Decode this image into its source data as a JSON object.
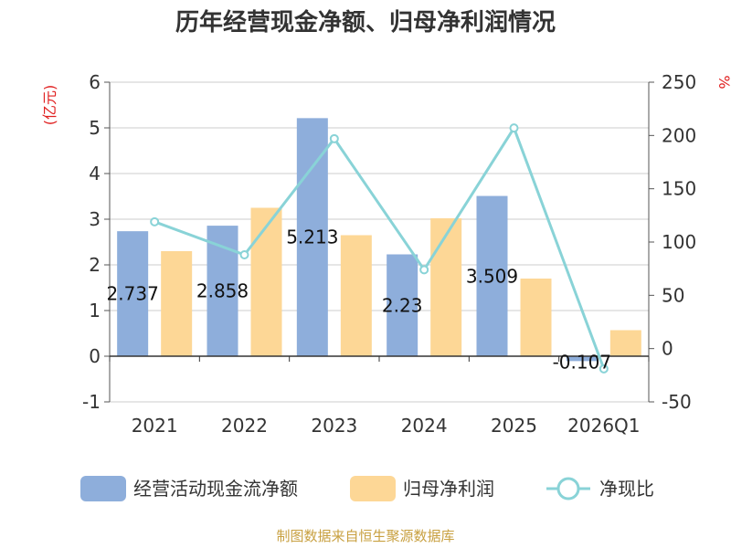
{
  "chart_data": {
    "type": "bar",
    "title": "历年经营现金净额、归母净利润情况",
    "left_unit": "(亿元)",
    "right_unit": "%",
    "categories": [
      "2021",
      "2022",
      "2023",
      "2024",
      "2025",
      "2026Q1"
    ],
    "ylim": [
      -1,
      6
    ],
    "yticks": [
      -1,
      0,
      1,
      2,
      3,
      4,
      5,
      6
    ],
    "y2lim": [
      -50,
      250
    ],
    "y2ticks": [
      -50,
      0,
      50,
      100,
      150,
      200,
      250
    ],
    "grid": true,
    "legend_position": "bottom",
    "series": [
      {
        "name": "经营活动现金流净额",
        "type": "bar",
        "axis": "left",
        "color": "#8eaedb",
        "values": [
          2.737,
          2.858,
          5.213,
          2.23,
          3.509,
          -0.107
        ],
        "labels": [
          "2.737",
          "2.858",
          "5.213",
          "2.23",
          "3.509",
          "-0.107"
        ]
      },
      {
        "name": "归母净利润",
        "type": "bar",
        "axis": "left",
        "color": "#fdd796",
        "values": [
          2.3,
          3.25,
          2.65,
          3.02,
          1.7,
          0.57
        ]
      },
      {
        "name": "净现比",
        "type": "line",
        "axis": "right",
        "color": "#89d3d7",
        "values": [
          119,
          88,
          197,
          74,
          207,
          -19
        ]
      }
    ],
    "source": "制图数据来自恒生聚源数据库"
  }
}
